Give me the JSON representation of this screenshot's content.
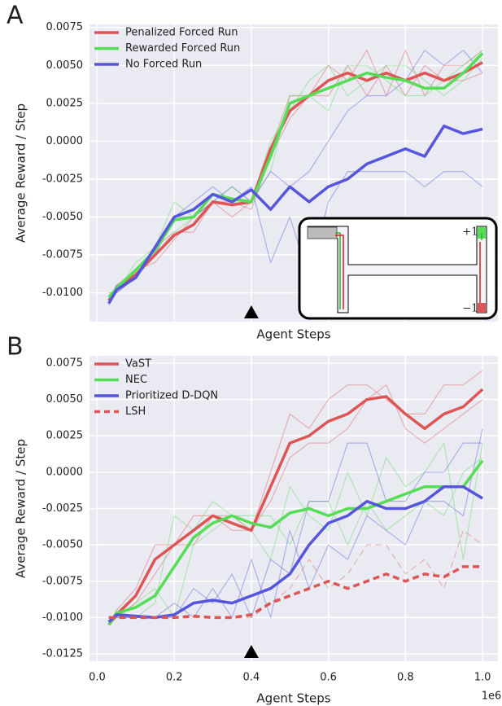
{
  "chart_data": [
    {
      "type": "line",
      "panel_label": "A",
      "xlabel": "Agent Steps",
      "ylabel": "Average Reward / Step",
      "x": [
        0.03,
        0.05,
        0.1,
        0.15,
        0.2,
        0.25,
        0.3,
        0.35,
        0.4,
        0.45,
        0.5,
        0.55,
        0.6,
        0.65,
        0.7,
        0.75,
        0.8,
        0.85,
        0.9,
        0.95,
        1.0
      ],
      "xlim": [
        -0.02,
        1.04
      ],
      "ylim": [
        -0.0119,
        0.0077
      ],
      "grid": true,
      "legend": "upper left",
      "show_xtick_labels": false,
      "xticks": [
        0,
        0.2,
        0.4,
        0.6,
        0.8,
        1
      ],
      "yticks": [
        {
          "value": -0.01,
          "label": "-0.0100"
        },
        {
          "value": -0.0075,
          "label": "-0.0075"
        },
        {
          "value": -0.005,
          "label": "-0.0050"
        },
        {
          "value": -0.0025,
          "label": "-0.0025"
        },
        {
          "value": 0,
          "label": "0.0000"
        },
        {
          "value": 0.0025,
          "label": "0.0025"
        },
        {
          "value": 0.005,
          "label": "0.0050"
        },
        {
          "value": 0.0075,
          "label": "0.0075"
        }
      ],
      "marker_x": 0.4,
      "inset_labels": [
        "+1",
        "−1"
      ],
      "series": [
        {
          "color": "#dd555566",
          "linewidth": 1.2,
          "values": [
            -0.01,
            -0.01,
            -0.009,
            -0.007,
            -0.006,
            -0.006,
            -0.004,
            -0.005,
            -0.004,
            -0.0005,
            0.003,
            0.003,
            0.005,
            0.004,
            0.006,
            0.003,
            0.006,
            0.003,
            0.005,
            0.005,
            0.006
          ]
        },
        {
          "color": "#dd555566",
          "linewidth": 1.2,
          "values": [
            -0.0105,
            -0.0095,
            -0.0085,
            -0.008,
            -0.0065,
            -0.005,
            -0.004,
            -0.004,
            -0.0045,
            -0.001,
            0.0015,
            0.003,
            0.003,
            0.005,
            0.003,
            0.005,
            0.003,
            0.005,
            0.004,
            0.004,
            0.0045
          ]
        },
        {
          "color": "#55dd5566",
          "linewidth": 1.2,
          "values": [
            -0.01,
            -0.01,
            -0.008,
            -0.007,
            -0.004,
            -0.005,
            -0.004,
            -0.003,
            -0.004,
            -0.002,
            0.003,
            0.003,
            0.002,
            0.005,
            0.005,
            0.004,
            0.003,
            0.003,
            0.004,
            0.005,
            0.006
          ]
        },
        {
          "color": "#55dd5566",
          "linewidth": 1.2,
          "values": [
            -0.0105,
            -0.0095,
            -0.009,
            -0.0075,
            -0.006,
            -0.005,
            -0.0035,
            -0.004,
            -0.004,
            0.0,
            0.002,
            0.004,
            0.005,
            0.003,
            0.004,
            0.005,
            0.005,
            0.004,
            0.003,
            0.004,
            0.0055
          ]
        },
        {
          "color": "#5555dd66",
          "linewidth": 1.2,
          "values": [
            -0.0108,
            -0.01,
            -0.009,
            -0.007,
            -0.005,
            -0.004,
            -0.003,
            -0.004,
            -0.003,
            -0.008,
            -0.005,
            -0.009,
            -0.004,
            -0.002,
            -0.002,
            -0.002,
            -0.002,
            -0.003,
            -0.002,
            -0.002,
            -0.003
          ]
        },
        {
          "color": "#5555dd66",
          "linewidth": 1.2,
          "values": [
            -0.0105,
            -0.0095,
            -0.009,
            -0.0075,
            -0.005,
            -0.005,
            -0.004,
            -0.003,
            -0.004,
            -0.002,
            -0.003,
            -0.002,
            0.0,
            0.002,
            0.003,
            0.003,
            0.004,
            0.006,
            0.005,
            0.006,
            0.0045
          ]
        },
        {
          "name": "Penalized Forced Run",
          "color": "#dd5555",
          "linewidth": 3.5,
          "values": [
            -0.0105,
            -0.0098,
            -0.0088,
            -0.0075,
            -0.0062,
            -0.0055,
            -0.004,
            -0.0042,
            -0.004,
            -0.0005,
            0.002,
            0.003,
            0.004,
            0.0045,
            0.004,
            0.0045,
            0.004,
            0.0045,
            0.004,
            0.0045,
            0.0052
          ]
        },
        {
          "name": "Rewarded Forced Run",
          "color": "#55dd55",
          "linewidth": 3.5,
          "values": [
            -0.0103,
            -0.0097,
            -0.0085,
            -0.0072,
            -0.0052,
            -0.005,
            -0.0035,
            -0.0038,
            -0.004,
            -0.001,
            0.0025,
            0.003,
            0.0035,
            0.004,
            0.0045,
            0.0042,
            0.004,
            0.0035,
            0.0035,
            0.0045,
            0.0058
          ]
        },
        {
          "name": "No Forced Run",
          "color": "#5555dd",
          "linewidth": 3.5,
          "values": [
            -0.0107,
            -0.0098,
            -0.009,
            -0.007,
            -0.005,
            -0.0045,
            -0.0035,
            -0.004,
            -0.0032,
            -0.0045,
            -0.003,
            -0.004,
            -0.003,
            -0.0025,
            -0.0015,
            -0.001,
            -0.0005,
            -0.001,
            0.001,
            0.0005,
            0.0008
          ]
        }
      ]
    },
    {
      "type": "line",
      "panel_label": "B",
      "xlabel": "Agent Steps",
      "ylabel": "Average Reward / Step",
      "x_offset_label": "1e6",
      "x": [
        0.03,
        0.05,
        0.1,
        0.15,
        0.2,
        0.25,
        0.3,
        0.35,
        0.4,
        0.45,
        0.5,
        0.55,
        0.6,
        0.65,
        0.7,
        0.75,
        0.8,
        0.85,
        0.9,
        0.95,
        1.0
      ],
      "xlim": [
        -0.02,
        1.04
      ],
      "ylim": [
        -0.013,
        0.008
      ],
      "grid": true,
      "legend": "upper left",
      "show_xtick_labels": true,
      "xticks": [
        {
          "value": 0,
          "label": "0.0"
        },
        0.2,
        0.4,
        0.6,
        0.8,
        {
          "value": 1,
          "label": "1.0"
        }
      ],
      "yticks": [
        {
          "value": -0.0125,
          "label": "-0.0125"
        },
        {
          "value": -0.01,
          "label": "-0.0100"
        },
        {
          "value": -0.0075,
          "label": "-0.0075"
        },
        {
          "value": -0.005,
          "label": "-0.0050"
        },
        {
          "value": -0.0025,
          "label": "-0.0025"
        },
        {
          "value": 0,
          "label": "0.0000"
        },
        {
          "value": 0.0025,
          "label": "0.0025"
        },
        {
          "value": 0.005,
          "label": "0.0050"
        },
        {
          "value": 0.0075,
          "label": "0.0075"
        }
      ],
      "marker_x": 0.4,
      "series": [
        {
          "color": "#dd555566",
          "linewidth": 1.2,
          "values": [
            -0.0105,
            -0.0095,
            -0.008,
            -0.005,
            -0.005,
            -0.003,
            -0.003,
            -0.003,
            -0.004,
            0.0,
            0.004,
            0.003,
            0.005,
            0.006,
            0.006,
            0.005,
            0.004,
            0.004,
            0.006,
            0.006,
            0.007
          ]
        },
        {
          "color": "#dd555566",
          "linewidth": 1.2,
          "values": [
            -0.0105,
            -0.01,
            -0.009,
            -0.007,
            -0.005,
            -0.005,
            -0.003,
            -0.004,
            -0.004,
            -0.002,
            0.001,
            0.002,
            0.002,
            0.003,
            0.005,
            0.006,
            0.003,
            0.002,
            0.003,
            0.004,
            0.005
          ]
        },
        {
          "color": "#55dd5566",
          "linewidth": 1.2,
          "values": [
            -0.0105,
            -0.0095,
            -0.01,
            -0.009,
            -0.003,
            -0.004,
            -0.002,
            -0.003,
            -0.004,
            -0.006,
            -0.001,
            -0.003,
            -0.004,
            0.0,
            -0.003,
            0.001,
            -0.001,
            0.0,
            0.002,
            -0.006,
            0.002
          ]
        },
        {
          "color": "#55dd5566",
          "linewidth": 1.2,
          "values": [
            -0.0105,
            -0.01,
            -0.009,
            -0.008,
            -0.01,
            -0.005,
            -0.004,
            -0.003,
            -0.003,
            -0.003,
            -0.005,
            -0.002,
            -0.002,
            -0.005,
            -0.002,
            -0.004,
            -0.003,
            -0.002,
            -0.003,
            0.0,
            0.001
          ]
        },
        {
          "color": "#5555dd66",
          "linewidth": 1.2,
          "values": [
            -0.01,
            -0.01,
            -0.01,
            -0.01,
            -0.01,
            -0.008,
            -0.009,
            -0.007,
            -0.01,
            -0.006,
            -0.007,
            -0.002,
            -0.002,
            0.002,
            0.002,
            -0.002,
            -0.002,
            0.0,
            0.0,
            0.002,
            0.002
          ]
        },
        {
          "color": "#5555dd66",
          "linewidth": 1.2,
          "values": [
            -0.01,
            -0.01,
            -0.01,
            -0.01,
            -0.009,
            -0.01,
            -0.008,
            -0.01,
            -0.006,
            -0.01,
            -0.004,
            -0.008,
            -0.005,
            -0.006,
            -0.003,
            -0.004,
            -0.005,
            -0.002,
            -0.002,
            -0.003,
            0.003
          ]
        },
        {
          "color": "#dd555566",
          "linewidth": 1.2,
          "dash": true,
          "values": [
            -0.01,
            -0.01,
            -0.01,
            -0.01,
            -0.01,
            -0.01,
            -0.01,
            -0.01,
            -0.01,
            -0.009,
            -0.008,
            -0.006,
            -0.008,
            -0.007,
            -0.005,
            -0.005,
            -0.007,
            -0.006,
            -0.008,
            -0.004,
            -0.005
          ]
        },
        {
          "name": "VaST",
          "color": "#dd5555",
          "linewidth": 3.5,
          "values": [
            -0.0105,
            -0.0098,
            -0.0085,
            -0.006,
            -0.005,
            -0.004,
            -0.003,
            -0.0035,
            -0.004,
            -0.001,
            0.002,
            0.0025,
            0.0035,
            0.004,
            0.005,
            0.0052,
            0.004,
            0.003,
            0.004,
            0.0045,
            0.0057
          ]
        },
        {
          "name": "NEC",
          "color": "#55dd55",
          "linewidth": 3.5,
          "values": [
            -0.0105,
            -0.0097,
            -0.0093,
            -0.0085,
            -0.0065,
            -0.0045,
            -0.0035,
            -0.003,
            -0.0035,
            -0.0038,
            -0.0028,
            -0.0025,
            -0.003,
            -0.0025,
            -0.0025,
            -0.002,
            -0.0015,
            -0.001,
            -0.001,
            -0.001,
            0.0008
          ]
        },
        {
          "name": "Prioritized D-DQN",
          "color": "#5555dd",
          "linewidth": 3.5,
          "values": [
            -0.0103,
            -0.0098,
            -0.0099,
            -0.01,
            -0.0098,
            -0.009,
            -0.0088,
            -0.009,
            -0.0085,
            -0.008,
            -0.007,
            -0.005,
            -0.0035,
            -0.003,
            -0.002,
            -0.0025,
            -0.0025,
            -0.002,
            -0.001,
            -0.001,
            -0.0018
          ]
        },
        {
          "name": "LSH",
          "color": "#dd5555",
          "linewidth": 3.5,
          "dash": true,
          "values": [
            -0.01,
            -0.01,
            -0.01,
            -0.01,
            -0.01,
            -0.0099,
            -0.01,
            -0.01,
            -0.0098,
            -0.009,
            -0.0085,
            -0.008,
            -0.0075,
            -0.008,
            -0.0075,
            -0.007,
            -0.0075,
            -0.007,
            -0.0072,
            -0.0065,
            -0.0065
          ]
        }
      ]
    }
  ]
}
